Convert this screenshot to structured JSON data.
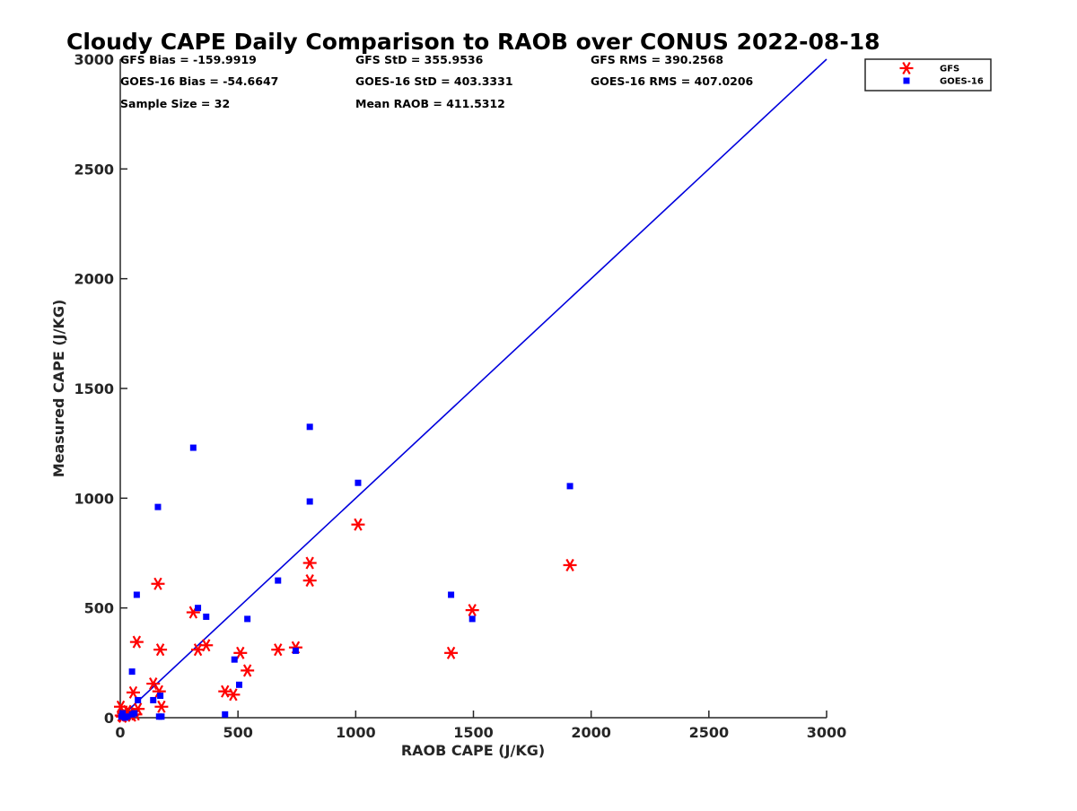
{
  "chart_data": {
    "type": "scatter",
    "title": "Cloudy CAPE Daily Comparison to RAOB over CONUS 2022-08-18",
    "xlabel": "RAOB CAPE (J/KG)",
    "ylabel": "Measured CAPE (J/KG)",
    "xlim": [
      0,
      3000
    ],
    "ylim": [
      0,
      3000
    ],
    "xticks": [
      0,
      500,
      1000,
      1500,
      2000,
      2500,
      3000
    ],
    "yticks": [
      0,
      500,
      1000,
      1500,
      2000,
      2500,
      3000
    ],
    "xtick_labels": [
      "0",
      "500",
      "1000",
      "1500",
      "2000",
      "2500",
      "3000"
    ],
    "ytick_labels": [
      "0",
      "500",
      "1000",
      "1500",
      "2000",
      "2500",
      "3000"
    ],
    "grid": false,
    "legend_position": "top-right",
    "reference_line": {
      "x": [
        0,
        3000
      ],
      "y": [
        0,
        3000
      ],
      "color": "#0000dd"
    },
    "stats": [
      [
        "GFS Bias = -159.9919",
        "GFS StD = 355.9536",
        "GFS RMS = 390.2568"
      ],
      [
        "GOES-16 Bias = -54.6647",
        "GOES-16 StD = 403.3331",
        "GOES-16 RMS = 407.0206"
      ],
      [
        "Sample Size = 32",
        "Mean RAOB = 411.5312",
        ""
      ]
    ],
    "series": [
      {
        "name": "GFS",
        "marker": "asterisk",
        "color": "#ff0000",
        "points": [
          [
            2,
            50
          ],
          [
            5,
            10
          ],
          [
            10,
            5
          ],
          [
            15,
            20
          ],
          [
            25,
            10
          ],
          [
            30,
            30
          ],
          [
            40,
            20
          ],
          [
            50,
            10
          ],
          [
            55,
            115
          ],
          [
            65,
            15
          ],
          [
            70,
            345
          ],
          [
            75,
            40
          ],
          [
            140,
            155
          ],
          [
            160,
            610
          ],
          [
            165,
            120
          ],
          [
            170,
            310
          ],
          [
            175,
            50
          ],
          [
            310,
            480
          ],
          [
            330,
            310
          ],
          [
            365,
            330
          ],
          [
            445,
            120
          ],
          [
            480,
            105
          ],
          [
            510,
            295
          ],
          [
            540,
            215
          ],
          [
            670,
            310
          ],
          [
            745,
            320
          ],
          [
            805,
            625
          ],
          [
            805,
            705
          ],
          [
            1010,
            880
          ],
          [
            1405,
            295
          ],
          [
            1495,
            490
          ],
          [
            1910,
            695
          ]
        ]
      },
      {
        "name": "GOES-16",
        "marker": "square",
        "color": "#0000ff",
        "points": [
          [
            5,
            5
          ],
          [
            10,
            20
          ],
          [
            20,
            0
          ],
          [
            30,
            5
          ],
          [
            50,
            15
          ],
          [
            50,
            210
          ],
          [
            60,
            20
          ],
          [
            70,
            560
          ],
          [
            75,
            80
          ],
          [
            140,
            80
          ],
          [
            160,
            960
          ],
          [
            165,
            5
          ],
          [
            170,
            100
          ],
          [
            175,
            5
          ],
          [
            310,
            1230
          ],
          [
            330,
            500
          ],
          [
            365,
            460
          ],
          [
            445,
            15
          ],
          [
            485,
            265
          ],
          [
            505,
            150
          ],
          [
            540,
            450
          ],
          [
            670,
            625
          ],
          [
            745,
            305
          ],
          [
            805,
            985
          ],
          [
            805,
            1325
          ],
          [
            1010,
            1070
          ],
          [
            1405,
            560
          ],
          [
            1495,
            450
          ],
          [
            1910,
            1055
          ]
        ]
      }
    ]
  }
}
